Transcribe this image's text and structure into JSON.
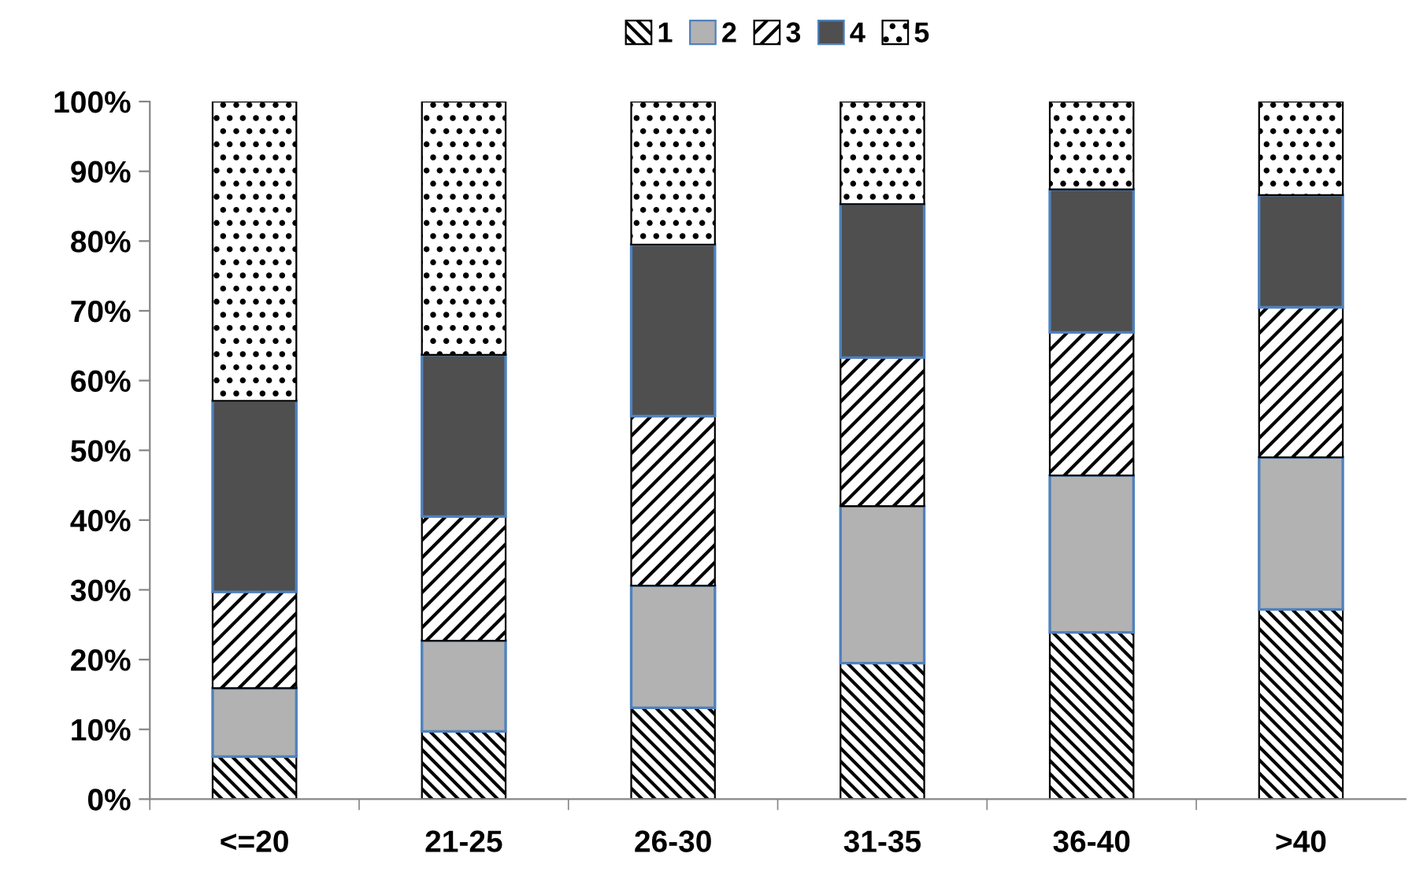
{
  "chart_data": {
    "type": "bar",
    "stacked": true,
    "categories": [
      "<=20",
      "21-25",
      "26-30",
      "31-35",
      "36-40",
      ">40"
    ],
    "series": [
      {
        "name": "1",
        "color": "#000000",
        "values": [
          6.1,
          9.7,
          13.1,
          19.5,
          23.9,
          27.2
        ]
      },
      {
        "name": "2",
        "color": "#b2b2b2",
        "values": [
          9.8,
          13.0,
          17.5,
          22.5,
          22.5,
          21.8
        ]
      },
      {
        "name": "3",
        "color": "#000000",
        "values": [
          13.8,
          17.8,
          24.3,
          21.3,
          20.5,
          21.5
        ]
      },
      {
        "name": "4",
        "color": "#4f4f4f",
        "values": [
          27.4,
          23.2,
          24.6,
          22.0,
          20.5,
          16.1
        ]
      },
      {
        "name": "5",
        "color": "#000000",
        "values": [
          42.9,
          36.3,
          20.5,
          14.7,
          12.6,
          13.4
        ]
      }
    ],
    "ylim": [
      0,
      100
    ],
    "yticks": [
      {
        "value": 0,
        "label": "0%"
      },
      {
        "value": 10,
        "label": "10%"
      },
      {
        "value": 20,
        "label": "20%"
      },
      {
        "value": 30,
        "label": "30%"
      },
      {
        "value": 40,
        "label": "40%"
      },
      {
        "value": 50,
        "label": "50%"
      },
      {
        "value": 60,
        "label": "60%"
      },
      {
        "value": 70,
        "label": "70%"
      },
      {
        "value": 80,
        "label": "80%"
      },
      {
        "value": 90,
        "label": "90%"
      },
      {
        "value": 100,
        "label": "100%"
      }
    ],
    "grid": false,
    "legend": "top"
  }
}
